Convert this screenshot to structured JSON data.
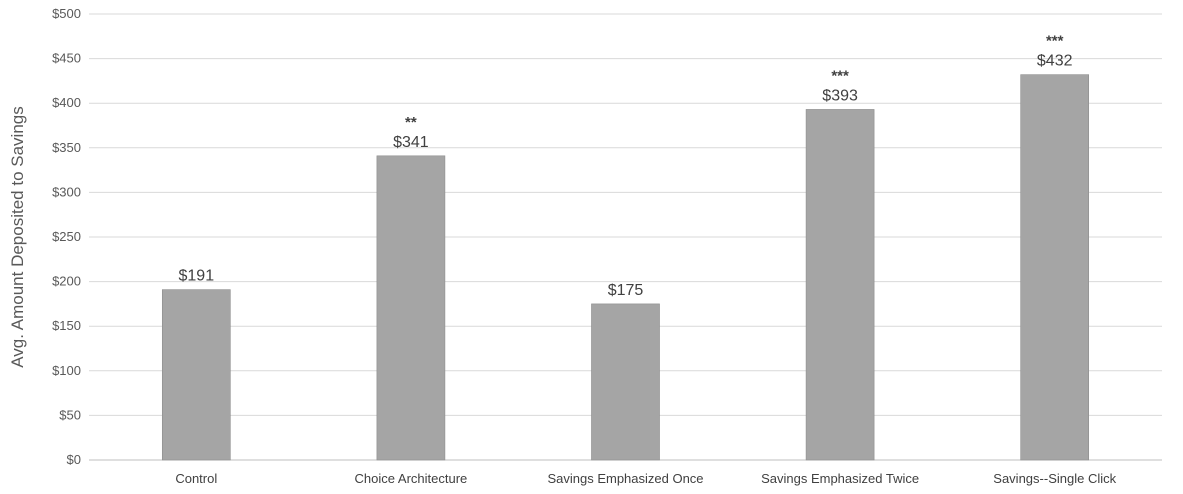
{
  "chart_data": {
    "type": "bar",
    "title": "",
    "xlabel": "",
    "ylabel": "Avg. Amount Deposited to Savings",
    "ylim": [
      0,
      500
    ],
    "ytick_step": 50,
    "ytick_prefix": "$",
    "grid": true,
    "legend": "none",
    "bar_color": "#a5a5a5",
    "categories": [
      "Control",
      "Choice Architecture",
      "Savings Emphasized Once",
      "Savings Emphasized Twice",
      "Savings--Single Click"
    ],
    "values": [
      191,
      341,
      175,
      393,
      432
    ],
    "data_labels": [
      "$191",
      "$341",
      "$175",
      "$393",
      "$432"
    ],
    "significance": [
      "",
      "**",
      "",
      "***",
      "***"
    ]
  }
}
